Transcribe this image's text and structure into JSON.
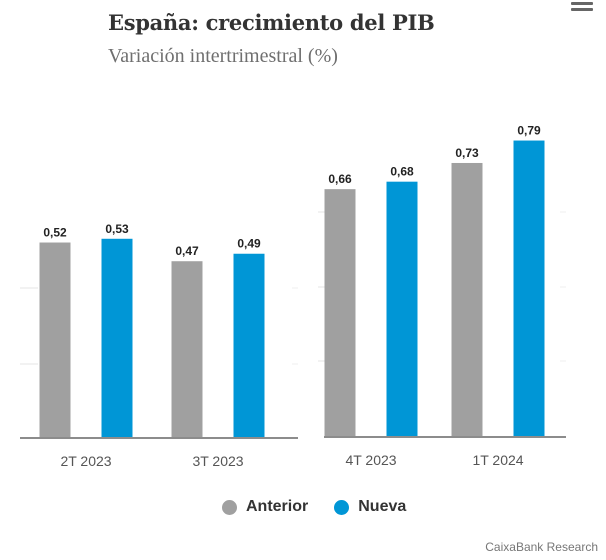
{
  "header": {
    "title": "España: crecimiento del PIB",
    "subtitle": "Variación intertrimestral (%)"
  },
  "menu": {
    "icon": "hamburger-menu-icon"
  },
  "chart_data": {
    "type": "bar",
    "title": "España: crecimiento del PIB",
    "subtitle": "Variación intertrimestral (%)",
    "xlabel": "",
    "ylabel": "",
    "ylim": [
      0,
      0.8
    ],
    "grid": true,
    "legend_position": "bottom",
    "categories": [
      "2T 2023",
      "3T 2023",
      "4T 2023",
      "1T 2024"
    ],
    "series": [
      {
        "name": "Anterior",
        "color": "#a0a0a0",
        "values": [
          0.52,
          0.47,
          0.66,
          0.73
        ],
        "labels": [
          "0,52",
          "0,47",
          "0,66",
          "0,73"
        ]
      },
      {
        "name": "Nueva",
        "color": "#0096d6",
        "values": [
          0.53,
          0.49,
          0.68,
          0.79
        ],
        "labels": [
          "0,53",
          "0,49",
          "0,68",
          "0,79"
        ]
      }
    ]
  },
  "legend": {
    "items": [
      {
        "label": "Anterior",
        "color": "#a0a0a0"
      },
      {
        "label": "Nueva",
        "color": "#0096d6"
      }
    ]
  },
  "credit": "CaixaBank Research"
}
